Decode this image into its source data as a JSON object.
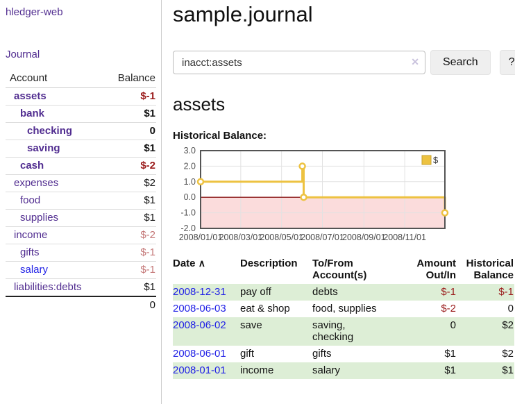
{
  "app": {
    "brand": "hledger-web"
  },
  "sidebar": {
    "journal_link": "Journal",
    "accounts": {
      "header_account": "Account",
      "header_balance": "Balance",
      "rows": [
        {
          "label": "assets",
          "level": 1,
          "bold": true,
          "balance": "$-1"
        },
        {
          "label": "bank",
          "level": 2,
          "bold": true,
          "balance": "$1"
        },
        {
          "label": "checking",
          "level": 3,
          "bold": true,
          "balance": "0"
        },
        {
          "label": "saving",
          "level": 3,
          "bold": true,
          "balance": "$1"
        },
        {
          "label": "cash",
          "level": 2,
          "bold": true,
          "balance": "$-2"
        },
        {
          "label": "expenses",
          "level": 1,
          "bold": false,
          "balance": "$2"
        },
        {
          "label": "food",
          "level": 2,
          "bold": false,
          "balance": "$1"
        },
        {
          "label": "supplies",
          "level": 2,
          "bold": false,
          "balance": "$1"
        },
        {
          "label": "income",
          "level": 1,
          "bold": false,
          "balance": "$-2"
        },
        {
          "label": "gifts",
          "level": 2,
          "bold": false,
          "balance": "$-1"
        },
        {
          "label": "salary",
          "level": 2,
          "bold": false,
          "balance": "$-1",
          "variant": "blue"
        },
        {
          "label": "liabilities:debts",
          "level": 1,
          "bold": false,
          "balance": "$1"
        }
      ],
      "total": "0"
    }
  },
  "main": {
    "title": "sample.journal",
    "search": {
      "value": "inacct:assets",
      "clear_icon": "✕",
      "button_label": "Search",
      "help_label": "?"
    },
    "section_title": "assets",
    "chart_title": "Historical Balance:"
  },
  "chart_data": {
    "type": "line",
    "step": true,
    "title": "Historical Balance",
    "xlim": [
      "2008-01-01",
      "2008-12-31"
    ],
    "ylim": [
      -2,
      3
    ],
    "series": [
      {
        "name": "$",
        "color": "#EDC240",
        "points": [
          {
            "date": "2008-01-01",
            "value": 1
          },
          {
            "date": "2008-06-01",
            "value": 2
          },
          {
            "date": "2008-06-03",
            "value": 0
          },
          {
            "date": "2008-12-31",
            "value": -1
          }
        ]
      }
    ],
    "xticks": [
      {
        "date": "2008-01-01",
        "label": "2008/01/01"
      },
      {
        "date": "2008-03-01",
        "label": "2008/03/01"
      },
      {
        "date": "2008-05-01",
        "label": "2008/05/01"
      },
      {
        "date": "2008-07-01",
        "label": "2008/07/01"
      },
      {
        "date": "2008-09-01",
        "label": "2008/09/01"
      },
      {
        "date": "2008-11-01",
        "label": "2008/11/01"
      }
    ],
    "yticks": [
      {
        "value": -2,
        "label": "-2.0"
      },
      {
        "value": -1,
        "label": "-1.0"
      },
      {
        "value": 0,
        "label": "0.0"
      },
      {
        "value": 1,
        "label": "1.0"
      },
      {
        "value": 2,
        "label": "2.0"
      },
      {
        "value": 3,
        "label": "3.0"
      }
    ],
    "legend": {
      "label": "$",
      "position": "top-right"
    },
    "negative_region_fill": "#fbdcdc",
    "zero_line_color": "#8b1a1a",
    "grid": true,
    "border_color": "#545454"
  },
  "register": {
    "headers": {
      "date": "Date",
      "sort_indicator": "∧",
      "description": "Description",
      "accounts": "To/From Account(s)",
      "amount": "Amount Out/In",
      "balance": "Historical Balance"
    },
    "rows": [
      {
        "date": "2008-12-31",
        "description": "pay off",
        "accounts": [
          "debts"
        ],
        "amount": "$-1",
        "balance": "$-1"
      },
      {
        "date": "2008-06-03",
        "description": "eat & shop",
        "accounts": [
          "food, supplies"
        ],
        "amount": "$-2",
        "balance": "0"
      },
      {
        "date": "2008-06-02",
        "description": "save",
        "accounts": [
          "saving,",
          "checking"
        ],
        "amount": "0",
        "balance": "$2"
      },
      {
        "date": "2008-06-01",
        "description": "gift",
        "accounts": [
          "gifts"
        ],
        "amount": "$1",
        "balance": "$2"
      },
      {
        "date": "2008-01-01",
        "description": "income",
        "accounts": [
          "salary"
        ],
        "amount": "$1",
        "balance": "$1"
      }
    ]
  },
  "colors": {
    "accent_purple": "#512d90",
    "link_blue": "#2222e6",
    "negative_strong": "#9a1b1b",
    "negative_soft": "#c47777",
    "row_stripe_green": "#ddeed6",
    "chart_gold": "#EDC240"
  }
}
